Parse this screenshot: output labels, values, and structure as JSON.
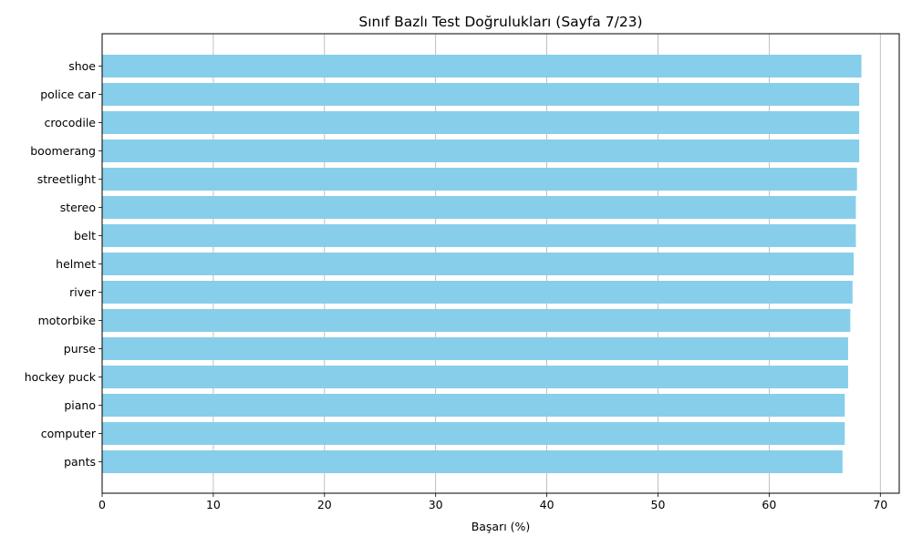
{
  "chart_data": {
    "type": "bar",
    "orientation": "horizontal",
    "title": "Sınıf Bazlı Test Doğrulukları (Sayfa 7/23)",
    "xlabel": "Başarı (%)",
    "ylabel": "",
    "xlim": [
      0,
      71.7
    ],
    "xticks": [
      0,
      10,
      20,
      30,
      40,
      50,
      60,
      70
    ],
    "grid": "x",
    "bar_color": "#87ceeb",
    "categories": [
      "shoe",
      "police car",
      "crocodile",
      "boomerang",
      "streetlight",
      "stereo",
      "belt",
      "helmet",
      "river",
      "motorbike",
      "purse",
      "hockey puck",
      "piano",
      "computer",
      "pants"
    ],
    "values": [
      68.3,
      68.1,
      68.1,
      68.1,
      67.9,
      67.8,
      67.8,
      67.6,
      67.5,
      67.3,
      67.1,
      67.1,
      66.8,
      66.8,
      66.6
    ]
  }
}
